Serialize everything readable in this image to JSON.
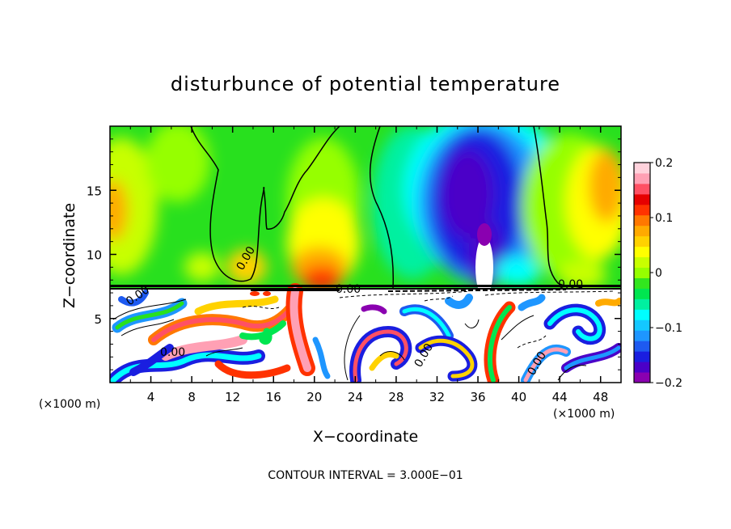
{
  "chart_data": {
    "type": "heatmap",
    "title": "disturbunce of potential temperature",
    "xlabel": "X−coordinate",
    "ylabel": "Z−coordinate",
    "x_unit": "(×1000 m)",
    "z_unit": "(×1000 m)",
    "footer": "CONTOUR INTERVAL = 3.000E−01",
    "xlim": [
      0,
      50
    ],
    "ylim": [
      0,
      20
    ],
    "x_ticks": [
      "4",
      "8",
      "12",
      "16",
      "20",
      "24",
      "28",
      "32",
      "36",
      "40",
      "44",
      "48"
    ],
    "y_ticks": [
      "5",
      "10",
      "15"
    ],
    "colorbar": {
      "range": [
        -0.2,
        0.2
      ],
      "tick_labels": [
        "0.2",
        "0.1",
        "0",
        "−0.1",
        "−0.2"
      ],
      "colors": [
        "#8a00b0",
        "#4b00c8",
        "#1a1ee0",
        "#1e5af0",
        "#1e96ff",
        "#14c8ff",
        "#00ffff",
        "#00f0a0",
        "#00e650",
        "#32e61e",
        "#96ff00",
        "#c8ff00",
        "#ffff00",
        "#ffd200",
        "#ffaa00",
        "#ff7800",
        "#ff3200",
        "#e60000",
        "#ff5064",
        "#ffa0b4",
        "#ffd2dc"
      ]
    },
    "contour_labels": [
      "0.00",
      "0.00",
      "0.00",
      "0.00",
      "0.00",
      "0.00",
      "0.00",
      "0.00"
    ],
    "grid": false,
    "legend": "colorbar-right"
  }
}
